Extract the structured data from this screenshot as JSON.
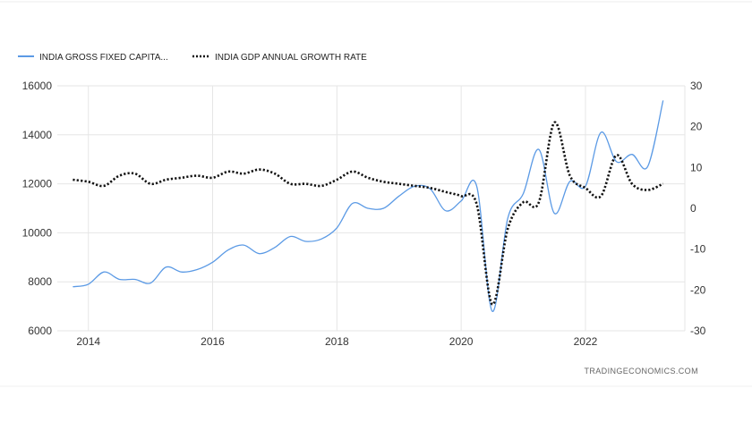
{
  "chart_data": {
    "type": "line",
    "title": "",
    "x": [
      2013.75,
      2014.0,
      2014.25,
      2014.5,
      2014.75,
      2015.0,
      2015.25,
      2015.5,
      2015.75,
      2016.0,
      2016.25,
      2016.5,
      2016.75,
      2017.0,
      2017.25,
      2017.5,
      2017.75,
      2018.0,
      2018.25,
      2018.5,
      2018.75,
      2019.0,
      2019.25,
      2019.5,
      2019.75,
      2020.0,
      2020.25,
      2020.5,
      2020.75,
      2021.0,
      2021.25,
      2021.5,
      2021.75,
      2022.0,
      2022.25,
      2022.5,
      2022.75,
      2023.0,
      2023.25
    ],
    "series": [
      {
        "name": "INDIA GROSS FIXED CAPITA...",
        "axis": "left",
        "color": "#5b9ae5",
        "style": "solid",
        "values": [
          7800,
          7900,
          8400,
          8100,
          8100,
          7950,
          8600,
          8400,
          8500,
          8800,
          9300,
          9500,
          9150,
          9400,
          9850,
          9650,
          9750,
          10200,
          11200,
          11000,
          11000,
          11500,
          11900,
          11800,
          10900,
          11300,
          11900,
          6800,
          10600,
          11600,
          13400,
          10800,
          12100,
          11900,
          14100,
          12900,
          13200,
          12700,
          15400
        ]
      },
      {
        "name": "INDIA GDP ANNUAL GROWTH RATE",
        "axis": "right",
        "color": "#111111",
        "style": "dotted",
        "values": [
          7,
          6.5,
          5.5,
          8,
          8.5,
          6,
          7,
          7.5,
          8,
          7.5,
          9,
          8.5,
          9.5,
          8.5,
          6,
          6,
          5.5,
          7,
          9,
          7.5,
          6.5,
          6,
          5.5,
          5,
          4,
          3,
          1,
          -23.5,
          -5,
          1.5,
          1.5,
          21,
          8,
          5,
          3,
          13,
          6,
          4.5,
          6
        ]
      }
    ],
    "xlim": [
      2013.5,
      2023.6
    ],
    "xticks": [
      2014,
      2016,
      2018,
      2020,
      2022
    ],
    "xtick_labels": [
      "2014",
      "2016",
      "2018",
      "2020",
      "2022"
    ],
    "ylim_left": [
      6000,
      16000
    ],
    "yticks_left": [
      6000,
      8000,
      10000,
      12000,
      14000,
      16000
    ],
    "ytick_labels_left": [
      "6000",
      "8000",
      "10000",
      "12000",
      "14000",
      "16000"
    ],
    "ylim_right": [
      -30,
      30
    ],
    "yticks_right": [
      -30,
      -20,
      -10,
      0,
      10,
      20,
      30
    ],
    "ytick_labels_right": [
      "-30",
      "-20",
      "-10",
      "0",
      "10",
      "20",
      "30"
    ],
    "legend": [
      "INDIA GROSS FIXED CAPITA...",
      "INDIA GDP ANNUAL GROWTH RATE"
    ],
    "legend_position": "top-left",
    "grid": true,
    "source": "TRADINGECONOMICS.COM"
  },
  "colors": {
    "capital_line": "#5b9ae5",
    "gdp_line": "#111111",
    "grid": "#e6e6e6"
  }
}
